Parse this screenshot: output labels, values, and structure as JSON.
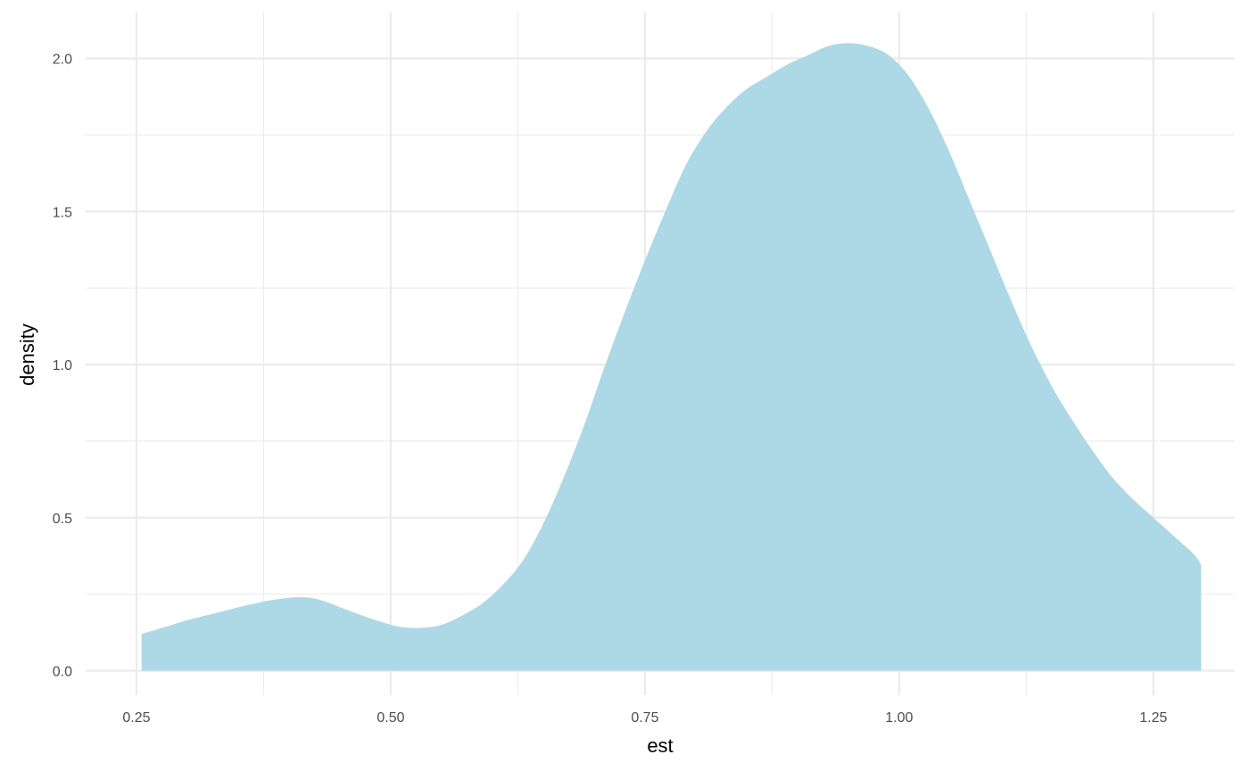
{
  "chart_data": {
    "type": "area",
    "title": "",
    "xlabel": "est",
    "ylabel": "density",
    "xlim": [
      0.2,
      1.33
    ],
    "ylim": [
      -0.08,
      2.15
    ],
    "x_ticks": [
      0.25,
      0.5,
      0.75,
      1.0,
      1.25
    ],
    "x_tick_labels": [
      "0.25",
      "0.50",
      "0.75",
      "1.00",
      "1.25"
    ],
    "x_minor_ticks": [
      0.375,
      0.625,
      0.875,
      1.125
    ],
    "y_ticks": [
      0.0,
      0.5,
      1.0,
      1.5,
      2.0
    ],
    "y_tick_labels": [
      "0.0",
      "0.5",
      "1.0",
      "1.5",
      "2.0"
    ],
    "y_minor_ticks": [
      0.25,
      0.75,
      1.25,
      1.75
    ],
    "grid": true,
    "fill_color": "#add8e6",
    "grid_color": "#ebebeb",
    "series": [
      {
        "x": [
          0.255,
          0.28,
          0.3,
          0.33,
          0.36,
          0.385,
          0.41,
          0.43,
          0.46,
          0.49,
          0.51,
          0.53,
          0.55,
          0.57,
          0.59,
          0.61,
          0.63,
          0.65,
          0.67,
          0.69,
          0.71,
          0.73,
          0.75,
          0.77,
          0.79,
          0.81,
          0.83,
          0.85,
          0.87,
          0.89,
          0.91,
          0.93,
          0.95,
          0.97,
          0.99,
          1.01,
          1.03,
          1.05,
          1.07,
          1.09,
          1.11,
          1.13,
          1.15,
          1.17,
          1.19,
          1.21,
          1.23,
          1.25,
          1.27,
          1.29,
          1.297
        ],
        "values": [
          0.12,
          0.145,
          0.165,
          0.19,
          0.215,
          0.232,
          0.24,
          0.232,
          0.195,
          0.16,
          0.143,
          0.14,
          0.15,
          0.18,
          0.22,
          0.28,
          0.36,
          0.48,
          0.63,
          0.8,
          0.99,
          1.17,
          1.34,
          1.5,
          1.65,
          1.76,
          1.84,
          1.9,
          1.94,
          1.98,
          2.01,
          2.04,
          2.05,
          2.04,
          2.01,
          1.94,
          1.83,
          1.69,
          1.53,
          1.37,
          1.21,
          1.06,
          0.93,
          0.82,
          0.72,
          0.63,
          0.56,
          0.5,
          0.44,
          0.38,
          0.345
        ]
      }
    ]
  }
}
